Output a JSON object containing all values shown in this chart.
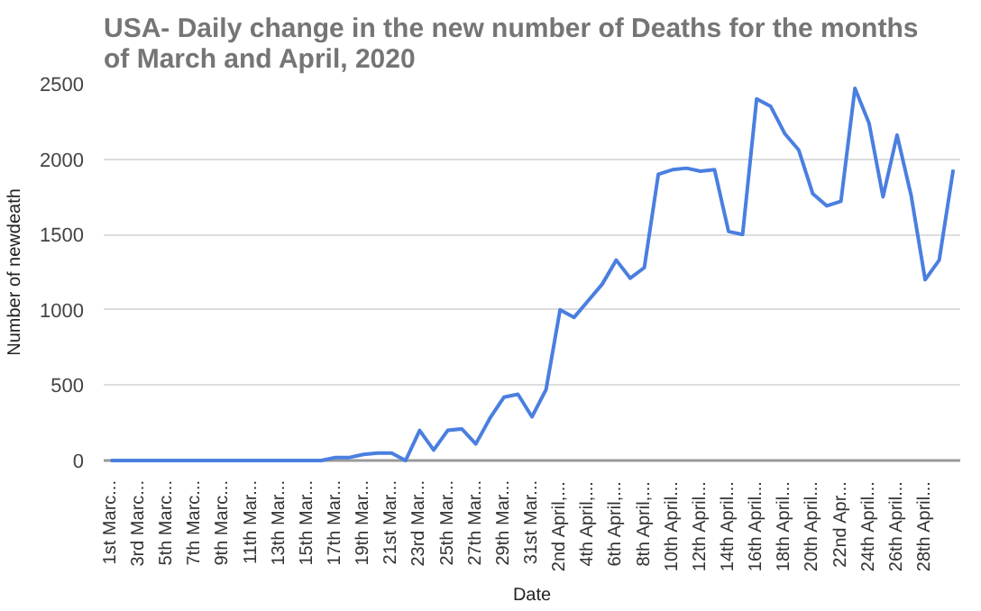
{
  "chart_data": {
    "type": "line",
    "title": "USA- Daily change in the new number of Deaths for the months of March and April, 2020",
    "xlabel": "Date",
    "ylabel": "Number of newdeath",
    "categories": [
      "1st Marc...",
      null,
      "3rd Marc...",
      null,
      "5th Marc...",
      null,
      "7th Marc...",
      null,
      "9th Marc...",
      null,
      "11th Mar...",
      null,
      "13th Mar...",
      null,
      "15th Mar...",
      null,
      "17th Mar...",
      null,
      "19th Mar...",
      null,
      "21st Mar...",
      null,
      "23rd Mar...",
      null,
      "25th Mar...",
      null,
      "27th Mar...",
      null,
      "29th Mar...",
      null,
      "31st Mar...",
      null,
      "2nd April,...",
      null,
      "4th April,...",
      null,
      "6th April,...",
      null,
      "8th April,...",
      null,
      "10th April...",
      null,
      "12th April...",
      null,
      "14th April...",
      null,
      "16th April...",
      null,
      "18th April...",
      null,
      "20th April...",
      null,
      "22nd Apr...",
      null,
      "24th April...",
      null,
      "26th April...",
      null,
      "28th April...",
      null,
      null
    ],
    "series": [
      {
        "color": "#4a7fe0",
        "values": [
          0,
          0,
          0,
          0,
          0,
          0,
          0,
          0,
          0,
          0,
          0,
          0,
          0,
          0,
          0,
          0,
          20,
          20,
          40,
          50,
          50,
          0,
          200,
          70,
          200,
          210,
          110,
          280,
          420,
          440,
          290,
          470,
          1000,
          950,
          1060,
          1170,
          1330,
          1210,
          1280,
          1900,
          1930,
          1940,
          1920,
          1930,
          1520,
          1500,
          2400,
          2350,
          2170,
          2060,
          1770,
          1690,
          1720,
          2470,
          2240,
          1750,
          2160,
          1760,
          1200,
          1330,
          1930
        ]
      }
    ],
    "ylim": [
      0,
      2500
    ],
    "yticks": [
      0,
      500,
      1000,
      1500,
      2000,
      2500
    ],
    "grid": "y"
  }
}
